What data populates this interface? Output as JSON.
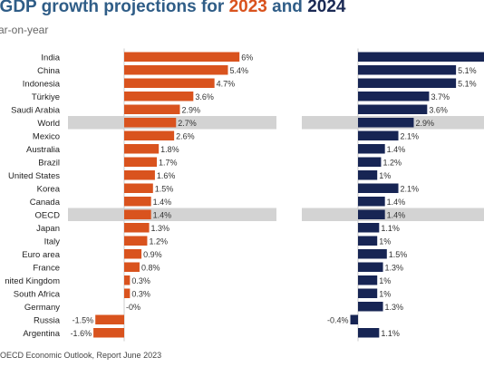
{
  "title": {
    "prefix": "l GDP growth projections for",
    "year1": "2023",
    "mid": "and",
    "year2": "2024"
  },
  "subtitle": "ar-on-year",
  "source": "OECD Economic Outlook, Report June 2023",
  "colors": {
    "y2023": "#d9531e",
    "y2024": "#172554",
    "highlight": "#d3d3d3",
    "axis": "#cccccc"
  },
  "chart_data": {
    "type": "bar",
    "title": "l GDP growth projections for 2023 and 2024",
    "subtitle": "ar-on-year",
    "categories": [
      "India",
      "China",
      "Indonesia",
      "Türkiye",
      "Saudi Arabia",
      "World",
      "Mexico",
      "Australia",
      "Brazil",
      "United States",
      "Korea",
      "Canada",
      "OECD",
      "Japan",
      "Italy",
      "Euro area",
      "France",
      "nited Kingdom",
      "South Africa",
      "Germany",
      "Russia",
      "Argentina"
    ],
    "highlighted": [
      "World",
      "OECD"
    ],
    "series": [
      {
        "name": "2023",
        "values": [
          6,
          5.4,
          4.7,
          3.6,
          2.9,
          2.7,
          2.6,
          1.8,
          1.7,
          1.6,
          1.5,
          1.4,
          1.4,
          1.3,
          1.2,
          0.9,
          0.8,
          0.3,
          0.3,
          -0.0,
          -1.5,
          -1.6
        ],
        "labels": [
          "6%",
          "5.4%",
          "4.7%",
          "3.6%",
          "2.9%",
          "2.7%",
          "2.6%",
          "1.8%",
          "1.7%",
          "1.6%",
          "1.5%",
          "1.4%",
          "1.4%",
          "1.3%",
          "1.2%",
          "0.9%",
          "0.8%",
          "0.3%",
          "0.3%",
          "-0%",
          "-1.5%",
          "-1.6%"
        ]
      },
      {
        "name": "2024",
        "values": [
          7,
          5.1,
          5.1,
          3.7,
          3.6,
          2.9,
          2.1,
          1.4,
          1.2,
          1.0,
          2.1,
          1.4,
          1.4,
          1.1,
          1.0,
          1.5,
          1.3,
          1.0,
          1.0,
          1.3,
          -0.4,
          1.1
        ],
        "labels": [
          "",
          "5.1%",
          "5.1%",
          "3.7%",
          "3.6%",
          "2.9%",
          "2.1%",
          "1.4%",
          "1.2%",
          "1%",
          "2.1%",
          "1.4%",
          "1.4%",
          "1.1%",
          "1%",
          "1.5%",
          "1.3%",
          "1%",
          "1%",
          "1.3%",
          "-0.4%",
          "1.1%"
        ]
      }
    ]
  }
}
